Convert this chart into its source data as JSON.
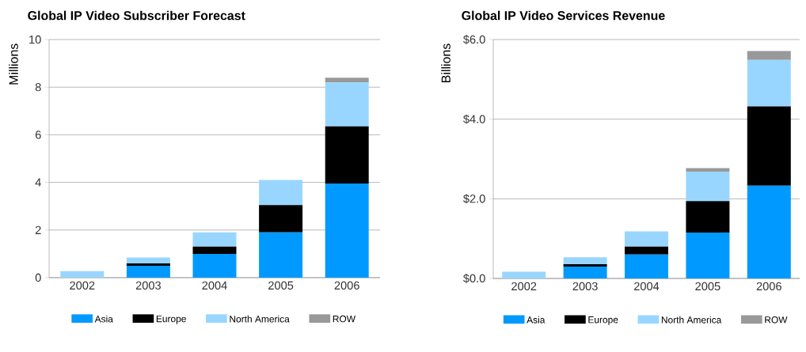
{
  "chart_data": [
    {
      "type": "bar",
      "title": "Global IP Video Subscriber Forecast",
      "ylabel": "Millions",
      "stacked": true,
      "grid": "y",
      "legend": "bottom",
      "categories": [
        "2002",
        "2003",
        "2004",
        "2005",
        "2006"
      ],
      "ylim": [
        0,
        10
      ],
      "yticks": [
        0,
        2,
        4,
        6,
        8,
        10
      ],
      "series": [
        {
          "name": "Asia",
          "color": "#0099ff",
          "values": [
            0,
            0.5,
            1.0,
            1.9,
            3.95
          ]
        },
        {
          "name": "Europe",
          "color": "#000000",
          "values": [
            0,
            0.1,
            0.3,
            1.15,
            2.4
          ]
        },
        {
          "name": "North America",
          "color": "#99d6ff",
          "values": [
            0.27,
            0.25,
            0.6,
            1.05,
            1.85
          ]
        },
        {
          "name": "ROW",
          "color": "#999999",
          "values": [
            0,
            0,
            0,
            0,
            0.2
          ]
        }
      ]
    },
    {
      "type": "bar",
      "title": "Global IP Video Services Revenue",
      "ylabel": "Billions",
      "stacked": true,
      "grid": "y",
      "legend": "bottom",
      "categories": [
        "2002",
        "2003",
        "2004",
        "2005",
        "2006"
      ],
      "ylim": [
        0,
        6
      ],
      "yticks": [
        {
          "value": 0,
          "label": "$0.0"
        },
        {
          "value": 2,
          "label": "$2.0"
        },
        {
          "value": 4,
          "label": "$4.0"
        },
        {
          "value": 6,
          "label": "$6.0"
        }
      ],
      "series": [
        {
          "name": "Asia",
          "color": "#0099ff",
          "values": [
            0,
            0.3,
            0.6,
            1.15,
            2.33
          ]
        },
        {
          "name": "Europe",
          "color": "#000000",
          "values": [
            0,
            0.06,
            0.2,
            0.79,
            1.99
          ]
        },
        {
          "name": "North America",
          "color": "#99d6ff",
          "values": [
            0.17,
            0.17,
            0.38,
            0.74,
            1.17
          ]
        },
        {
          "name": "ROW",
          "color": "#999999",
          "values": [
            0,
            0,
            0,
            0.09,
            0.22
          ]
        }
      ]
    }
  ]
}
